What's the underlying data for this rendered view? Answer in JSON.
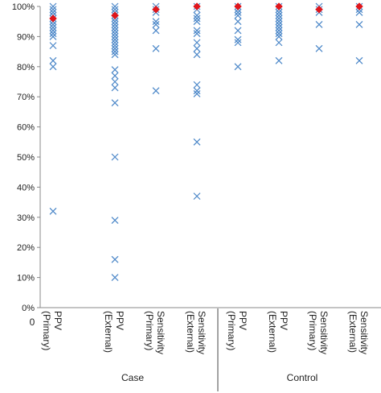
{
  "chart_data": {
    "type": "scatter",
    "x_origin_label": "0",
    "y_tick_labels": [
      "0%",
      "10%",
      "20%",
      "30%",
      "40%",
      "50%",
      "60%",
      "70%",
      "80%",
      "90%",
      "100%"
    ],
    "ylim": [
      0,
      100
    ],
    "categories": [
      [
        "PPV",
        "(Primary)"
      ],
      [
        "PPV",
        "(External)"
      ],
      [
        "Sensitivity",
        "(Primary)"
      ],
      [
        "Sensitivity",
        "(External)"
      ],
      [
        "PPV",
        "(Primary)"
      ],
      [
        "PPV",
        "(External)"
      ],
      [
        "Sensitivity",
        "(Primary)"
      ],
      [
        "Sensitivity",
        "(External)"
      ]
    ],
    "groups": [
      {
        "label": "Case",
        "categories": [
          0,
          1,
          2,
          3
        ]
      },
      {
        "label": "Control",
        "categories": [
          4,
          5,
          6,
          7
        ]
      }
    ],
    "colors": {
      "individual": "#4a86c8",
      "summary": "#e0161c"
    },
    "series": [
      {
        "marker": "x",
        "points": [
          [
            0,
            100
          ],
          [
            0,
            99
          ],
          [
            0,
            98
          ],
          [
            0,
            97
          ],
          [
            0,
            96
          ],
          [
            0,
            95
          ],
          [
            0,
            94
          ],
          [
            0,
            93
          ],
          [
            0,
            92
          ],
          [
            0,
            91
          ],
          [
            0,
            90
          ],
          [
            0,
            87
          ],
          [
            0,
            82
          ],
          [
            0,
            80
          ],
          [
            0,
            32
          ],
          [
            1,
            100
          ],
          [
            1,
            99
          ],
          [
            1,
            98
          ],
          [
            1,
            97
          ],
          [
            1,
            96
          ],
          [
            1,
            95
          ],
          [
            1,
            94
          ],
          [
            1,
            93
          ],
          [
            1,
            92
          ],
          [
            1,
            91
          ],
          [
            1,
            90
          ],
          [
            1,
            89
          ],
          [
            1,
            88
          ],
          [
            1,
            87
          ],
          [
            1,
            86
          ],
          [
            1,
            85
          ],
          [
            1,
            84
          ],
          [
            1,
            79
          ],
          [
            1,
            77
          ],
          [
            1,
            75
          ],
          [
            1,
            73
          ],
          [
            1,
            68
          ],
          [
            1,
            50
          ],
          [
            1,
            29
          ],
          [
            1,
            16
          ],
          [
            1,
            10
          ],
          [
            2,
            100
          ],
          [
            2,
            99
          ],
          [
            2,
            98
          ],
          [
            2,
            95
          ],
          [
            2,
            94
          ],
          [
            2,
            92
          ],
          [
            2,
            86
          ],
          [
            2,
            72
          ],
          [
            3,
            100
          ],
          [
            3,
            99
          ],
          [
            3,
            97
          ],
          [
            3,
            96
          ],
          [
            3,
            95
          ],
          [
            3,
            92
          ],
          [
            3,
            91
          ],
          [
            3,
            88
          ],
          [
            3,
            86
          ],
          [
            3,
            84
          ],
          [
            3,
            74
          ],
          [
            3,
            72
          ],
          [
            3,
            71
          ],
          [
            3,
            55
          ],
          [
            3,
            37
          ],
          [
            4,
            100
          ],
          [
            4,
            99
          ],
          [
            4,
            98
          ],
          [
            4,
            97
          ],
          [
            4,
            95
          ],
          [
            4,
            92
          ],
          [
            4,
            89
          ],
          [
            4,
            88
          ],
          [
            4,
            80
          ],
          [
            5,
            100
          ],
          [
            5,
            99
          ],
          [
            5,
            98
          ],
          [
            5,
            97
          ],
          [
            5,
            96
          ],
          [
            5,
            95
          ],
          [
            5,
            94
          ],
          [
            5,
            93
          ],
          [
            5,
            92
          ],
          [
            5,
            91
          ],
          [
            5,
            90
          ],
          [
            5,
            88
          ],
          [
            5,
            82
          ],
          [
            6,
            100
          ],
          [
            6,
            99
          ],
          [
            6,
            98
          ],
          [
            6,
            94
          ],
          [
            6,
            86
          ],
          [
            7,
            100
          ],
          [
            7,
            99
          ],
          [
            7,
            98
          ],
          [
            7,
            94
          ],
          [
            7,
            82
          ]
        ]
      },
      {
        "marker": "diamond",
        "points": [
          [
            0,
            96
          ],
          [
            1,
            97
          ],
          [
            2,
            99
          ],
          [
            3,
            100
          ],
          [
            4,
            100
          ],
          [
            5,
            100
          ],
          [
            6,
            99
          ],
          [
            7,
            100
          ]
        ]
      }
    ],
    "grid": false,
    "legend": "none"
  }
}
